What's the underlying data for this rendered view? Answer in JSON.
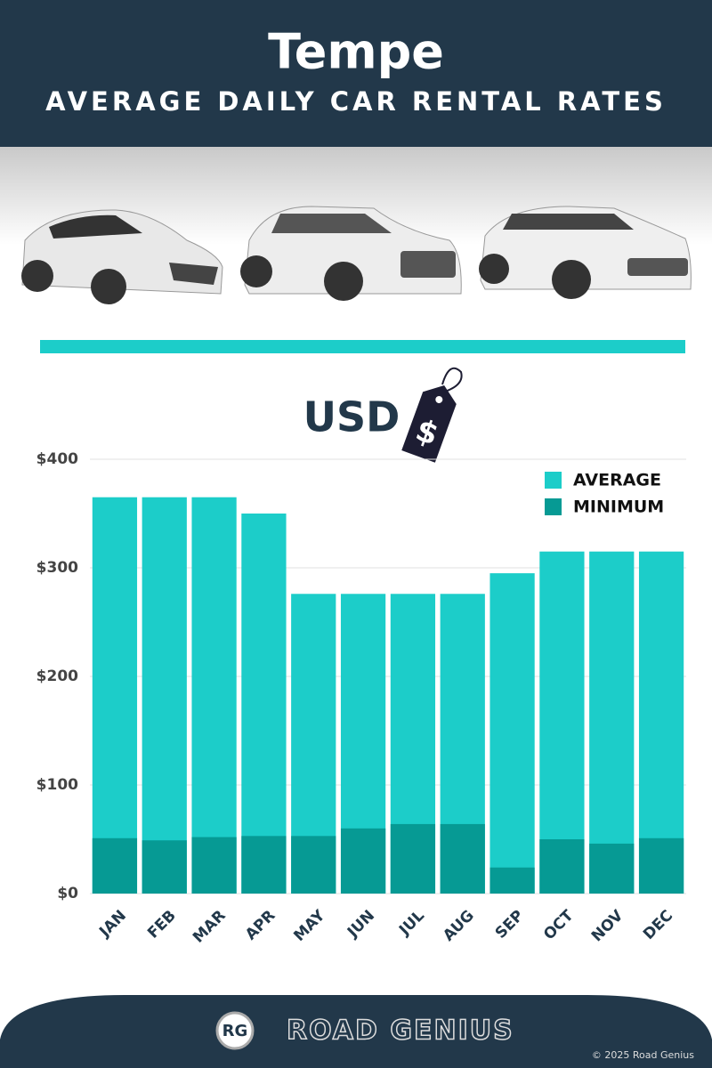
{
  "header": {
    "title": "Tempe",
    "subtitle": "AVERAGE DAILY CAR RENTAL RATES"
  },
  "currency": {
    "label": "USD",
    "symbol": "$"
  },
  "chart_data": {
    "type": "bar",
    "categories": [
      "JAN",
      "FEB",
      "MAR",
      "APR",
      "MAY",
      "JUN",
      "JUL",
      "AUG",
      "SEP",
      "OCT",
      "NOV",
      "DEC"
    ],
    "series": [
      {
        "name": "AVERAGE",
        "color": "#1ccdc9",
        "values": [
          365,
          365,
          365,
          350,
          276,
          276,
          276,
          276,
          295,
          315,
          315,
          315
        ]
      },
      {
        "name": "MINIMUM",
        "color": "#069a94",
        "values": [
          51,
          49,
          52,
          53,
          53,
          60,
          64,
          64,
          24,
          50,
          46,
          51
        ]
      }
    ],
    "ylim": [
      0,
      400
    ],
    "yticks": [
      {
        "value": 0,
        "label": "$0"
      },
      {
        "value": 100,
        "label": "$100"
      },
      {
        "value": 200,
        "label": "$200"
      },
      {
        "value": 300,
        "label": "$300"
      },
      {
        "value": 400,
        "label": "$400"
      }
    ],
    "grid": true,
    "legend": "top-right"
  },
  "footer": {
    "logo": "RG",
    "brand": "ROAD GENIUS",
    "copyright": "© 2025 Road Genius"
  }
}
